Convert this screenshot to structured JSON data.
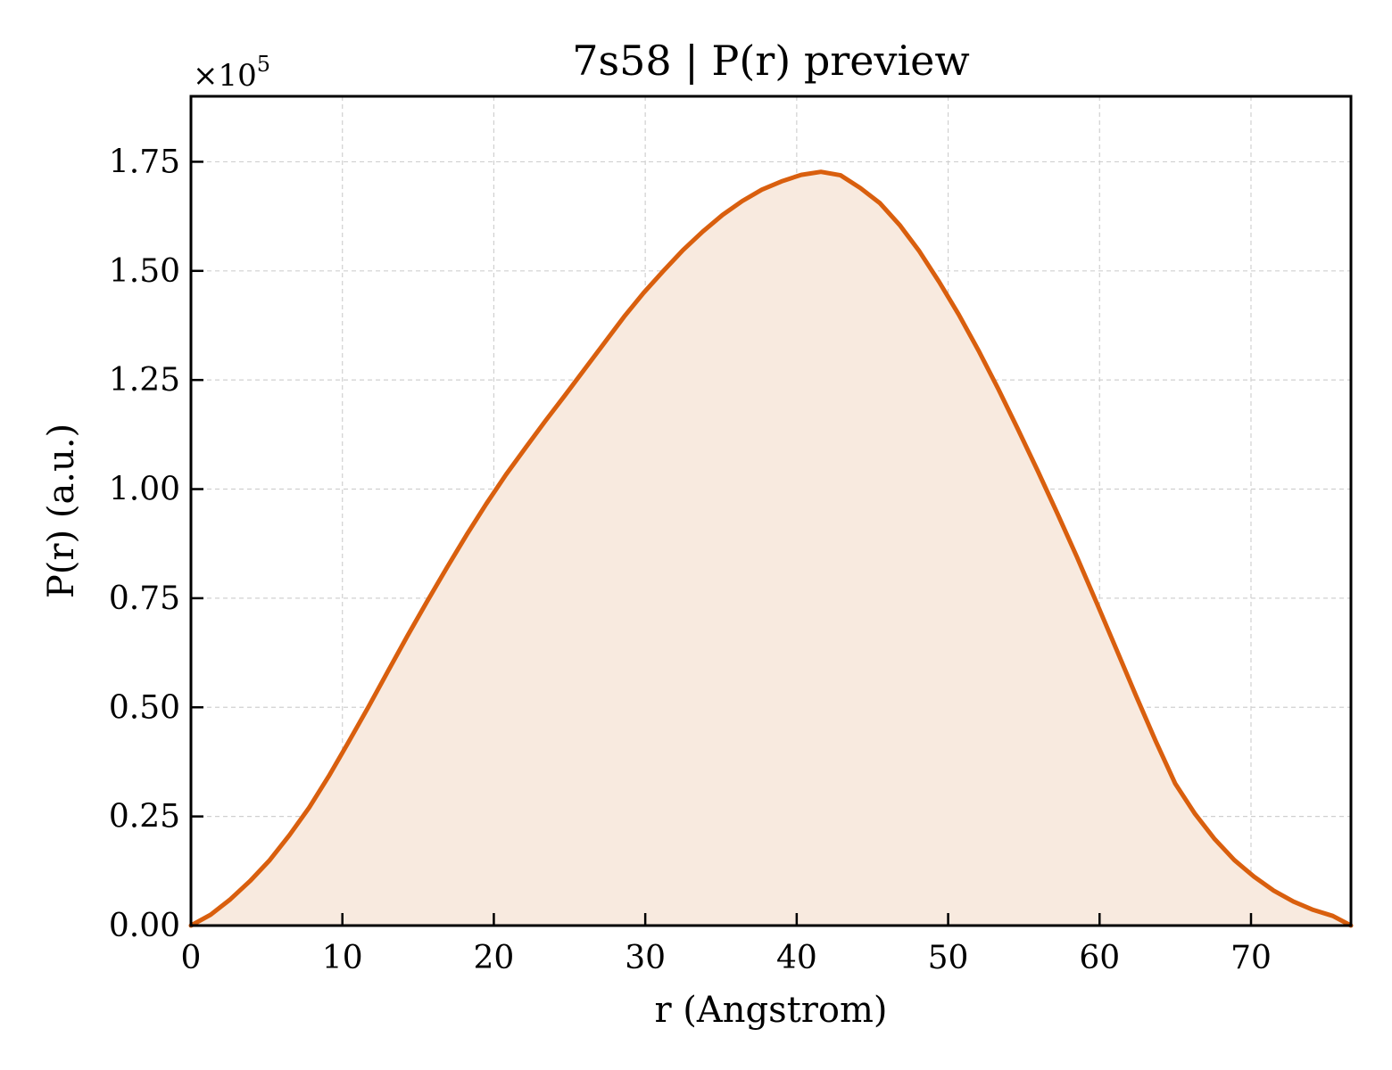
{
  "chart_data": {
    "type": "area",
    "title": "7s58 | P(r) preview",
    "xlabel": "r (Angstrom)",
    "ylabel": "P(r) (a.u.)",
    "y_offset_label": "×10",
    "y_offset_exponent": "5",
    "xlim": [
      0,
      76.6
    ],
    "ylim": [
      0,
      1.9
    ],
    "y_scale_factor": 100000,
    "x_ticks": [
      0,
      10,
      20,
      30,
      40,
      50,
      60,
      70
    ],
    "x_tick_labels": [
      "0",
      "10",
      "20",
      "30",
      "40",
      "50",
      "60",
      "70"
    ],
    "y_ticks": [
      0,
      0.25,
      0.5,
      0.75,
      1.0,
      1.25,
      1.5,
      1.75
    ],
    "y_tick_labels": [
      "0.00",
      "0.25",
      "0.50",
      "0.75",
      "1.00",
      "1.25",
      "1.50",
      "1.75"
    ],
    "grid": true,
    "legend": "none",
    "line_color": "#d95f0e",
    "fill_color": "#f8eadf",
    "series": [
      {
        "x": [
          0,
          1.3,
          2.6,
          3.9,
          5.2,
          6.5,
          7.8,
          9.1,
          10.4,
          11.7,
          13.0,
          14.3,
          15.6,
          16.9,
          18.2,
          19.5,
          20.8,
          22.1,
          23.4,
          24.7,
          26.0,
          27.3,
          28.6,
          29.9,
          31.2,
          32.5,
          33.8,
          35.1,
          36.4,
          37.7,
          39.0,
          40.3,
          41.6,
          42.9,
          44.2,
          45.5,
          46.8,
          48.1,
          49.4,
          50.7,
          52.0,
          53.3,
          54.6,
          55.9,
          57.2,
          58.5,
          59.8,
          61.1,
          62.4,
          63.7,
          65.0,
          66.3,
          67.6,
          68.9,
          70.2,
          71.5,
          72.8,
          74.1,
          75.4,
          76.6
        ],
        "y": [
          0,
          0.025,
          0.06,
          0.102,
          0.15,
          0.207,
          0.27,
          0.342,
          0.42,
          0.5,
          0.582,
          0.664,
          0.743,
          0.82,
          0.895,
          0.966,
          1.033,
          1.095,
          1.156,
          1.215,
          1.275,
          1.335,
          1.395,
          1.45,
          1.5,
          1.548,
          1.59,
          1.628,
          1.66,
          1.686,
          1.705,
          1.72,
          1.727,
          1.719,
          1.69,
          1.655,
          1.605,
          1.545,
          1.475,
          1.4,
          1.318,
          1.23,
          1.138,
          1.043,
          0.945,
          0.845,
          0.74,
          0.634,
          0.527,
          0.423,
          0.325,
          0.256,
          0.198,
          0.15,
          0.112,
          0.08,
          0.055,
          0.036,
          0.022,
          0.0
        ]
      }
    ]
  }
}
